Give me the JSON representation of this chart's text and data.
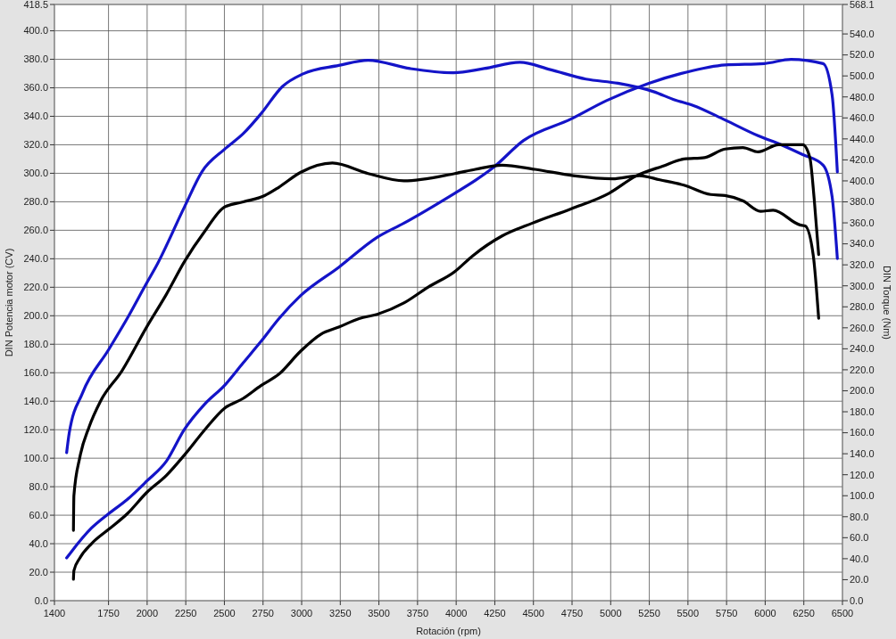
{
  "chart_data": {
    "type": "line",
    "xlabel": "Rotación (rpm)",
    "ylabel": "DIN Potencia motor (CV)",
    "y2label": "DIN Torque (Nm)",
    "xlim": [
      1400,
      6500
    ],
    "xticks": [
      1400,
      1750,
      2000,
      2250,
      2500,
      2750,
      3000,
      3250,
      3500,
      3750,
      4000,
      4250,
      4500,
      4750,
      5000,
      5250,
      5500,
      5750,
      6000,
      6250,
      6500
    ],
    "ylim": [
      0,
      418.5
    ],
    "yticks": [
      {
        "value": 0,
        "label": "0.0"
      },
      {
        "value": 20,
        "label": "20.0"
      },
      {
        "value": 40,
        "label": "40.0"
      },
      {
        "value": 60,
        "label": "60.0"
      },
      {
        "value": 80,
        "label": "80.0"
      },
      {
        "value": 100,
        "label": "100.0"
      },
      {
        "value": 120,
        "label": "120.0"
      },
      {
        "value": 140,
        "label": "140.0"
      },
      {
        "value": 160,
        "label": "160.0"
      },
      {
        "value": 180,
        "label": "180.0"
      },
      {
        "value": 200,
        "label": "200.0"
      },
      {
        "value": 220,
        "label": "220.0"
      },
      {
        "value": 240,
        "label": "240.0"
      },
      {
        "value": 260,
        "label": "260.0"
      },
      {
        "value": 280,
        "label": "280.0"
      },
      {
        "value": 300,
        "label": "300.0"
      },
      {
        "value": 320,
        "label": "320.0"
      },
      {
        "value": 340,
        "label": "340.0"
      },
      {
        "value": 360,
        "label": "360.0"
      },
      {
        "value": 380,
        "label": "380.0"
      },
      {
        "value": 400,
        "label": "400.0"
      },
      418.5
    ],
    "y2lim": [
      0,
      568.1
    ],
    "y2ticks": [
      {
        "value": 0,
        "label": "0.0"
      },
      {
        "value": 20,
        "label": "20.0"
      },
      {
        "value": 40,
        "label": "40.0"
      },
      {
        "value": 60,
        "label": "60.0"
      },
      {
        "value": 80,
        "label": "80.0"
      },
      {
        "value": 100,
        "label": "100.0"
      },
      {
        "value": 120,
        "label": "120.0"
      },
      {
        "value": 140,
        "label": "140.0"
      },
      {
        "value": 160,
        "label": "160.0"
      },
      {
        "value": 180,
        "label": "180.0"
      },
      {
        "value": 200,
        "label": "200.0"
      },
      {
        "value": 220,
        "label": "220.0"
      },
      {
        "value": 240,
        "label": "240.0"
      },
      {
        "value": 260,
        "label": "260.0"
      },
      {
        "value": 280,
        "label": "280.0"
      },
      {
        "value": 300,
        "label": "300.0"
      },
      {
        "value": 320,
        "label": "320.0"
      },
      {
        "value": 340,
        "label": "340.0"
      },
      {
        "value": 360,
        "label": "360.0"
      },
      {
        "value": 380,
        "label": "380.0"
      },
      {
        "value": 400,
        "label": "400.0"
      },
      {
        "value": 420,
        "label": "420.0"
      },
      {
        "value": 440,
        "label": "440.0"
      },
      {
        "value": 460,
        "label": "460.0"
      },
      {
        "value": 480,
        "label": "480.0"
      },
      {
        "value": 500,
        "label": "500.0"
      },
      {
        "value": 520,
        "label": "520.0"
      },
      {
        "value": 540,
        "label": "540.0"
      },
      568.1
    ],
    "grid": true,
    "series": [
      {
        "color": "#1414c8",
        "axis": "y2",
        "x": [
          1479,
          1496,
          1582,
          1750,
          1871,
          1998,
          2056,
          2241,
          2356,
          2500,
          2622,
          2737,
          2876,
          3009,
          3240,
          3430,
          3702,
          3973,
          4181,
          4412,
          4609,
          4840,
          5047,
          5278,
          5417,
          5532,
          5740,
          5954,
          6110,
          6243,
          6375,
          6433,
          6467
        ],
        "values": [
          141,
          160,
          198,
          239,
          269,
          303,
          318,
          375,
          409,
          430,
          445,
          464,
          490,
          502,
          510,
          515,
          507,
          503,
          507,
          513,
          506,
          497,
          493,
          485,
          477,
          472,
          458,
          443,
          434,
          425,
          415,
          385,
          326
        ]
      },
      {
        "color": "#1414c8",
        "x": [
          1479,
          1507,
          1640,
          1750,
          1871,
          1998,
          2125,
          2240,
          2373,
          2500,
          2622,
          2737,
          2853,
          2992,
          3240,
          3488,
          3662,
          3991,
          4124,
          4240,
          4436,
          4742,
          4973,
          5243,
          5491,
          5740,
          5994,
          6167,
          6375,
          6433,
          6467
        ],
        "values": [
          30,
          34,
          51,
          61,
          71,
          84,
          98,
          120,
          138,
          151,
          167,
          182,
          198,
          214,
          234,
          255,
          265,
          286,
          295,
          304,
          323,
          338,
          351,
          363,
          371,
          376,
          377,
          380,
          377,
          355,
          301
        ]
      },
      {
        "color": "#000000",
        "axis": "y2",
        "x": [
          1523,
          1526,
          1565,
          1623,
          1698,
          1837,
          1998,
          2125,
          2241,
          2373,
          2500,
          2622,
          2760,
          2853,
          2992,
          3199,
          3430,
          3662,
          3991,
          4124,
          4297,
          4510,
          4758,
          5012,
          5185,
          5318,
          5474,
          5647,
          5740,
          5855,
          5970,
          6051,
          6225,
          6259,
          6311,
          6346
        ],
        "values": [
          67,
          100,
          137,
          165,
          190,
          219,
          261,
          292,
          323,
          352,
          375,
          380,
          386,
          394,
          408,
          417,
          407,
          400,
          407,
          411,
          415,
          411,
          405,
          402,
          405,
          401,
          396,
          387,
          386,
          381,
          371,
          372,
          358,
          357,
          329,
          269
        ]
      },
      {
        "color": "#000000",
        "x": [
          1523,
          1526,
          1565,
          1640,
          1750,
          1871,
          1998,
          2125,
          2247,
          2373,
          2500,
          2622,
          2737,
          2853,
          2992,
          3124,
          3240,
          3372,
          3488,
          3662,
          3817,
          3991,
          4106,
          4297,
          4493,
          4742,
          4990,
          5163,
          5336,
          5474,
          5607,
          5740,
          5855,
          5954,
          6086,
          6167,
          6243,
          6289,
          6317,
          6346
        ],
        "values": [
          15,
          21,
          30,
          40,
          50,
          61,
          76,
          88,
          103,
          120,
          135,
          142,
          151,
          159,
          175,
          187,
          192,
          198,
          201,
          209,
          220,
          231,
          242,
          256,
          265,
          275,
          286,
          298,
          305,
          310,
          311,
          317,
          318,
          315,
          320,
          320,
          320,
          311,
          282,
          243
        ]
      }
    ]
  }
}
